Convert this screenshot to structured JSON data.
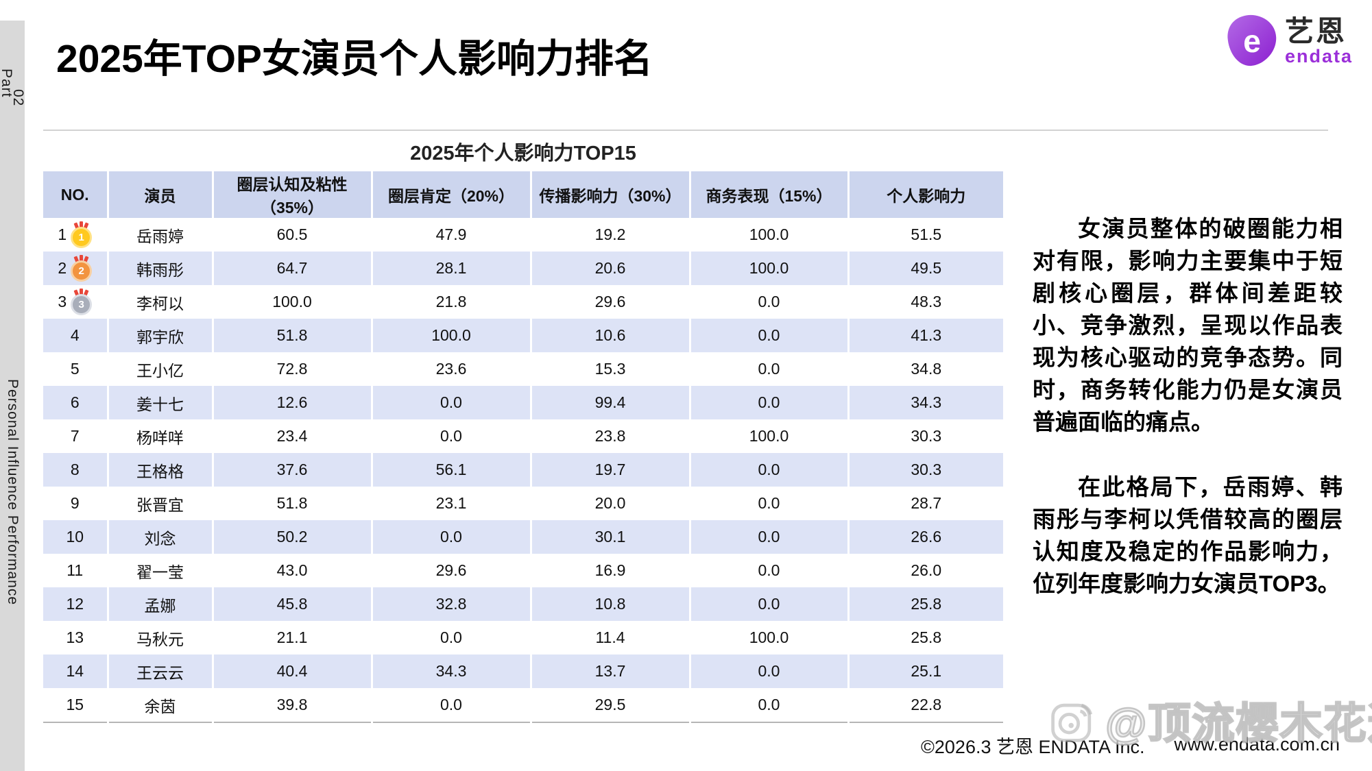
{
  "sidebar": {
    "part_line1": "Part",
    "part_line2": "02",
    "bottom_label": "Personal Influence Performance"
  },
  "header": {
    "title": "2025年TOP女演员个人影响力排名"
  },
  "logo": {
    "icon_letter": "e",
    "name_cn": "艺恩",
    "name_en": "endata"
  },
  "table": {
    "title": "2025年个人影响力TOP15",
    "columns": [
      "NO.",
      "演员",
      "圈层认知及粘性（35%）",
      "圈层肯定（20%）",
      "传播影响力（30%）",
      "商务表现（15%）",
      "个人影响力"
    ],
    "rows": [
      {
        "no": "1",
        "medal": "gold",
        "name": "岳雨婷",
        "values": [
          "60.5",
          "47.9",
          "19.2",
          "100.0",
          "51.5"
        ]
      },
      {
        "no": "2",
        "medal": "orange",
        "name": "韩雨彤",
        "values": [
          "64.7",
          "28.1",
          "20.6",
          "100.0",
          "49.5"
        ]
      },
      {
        "no": "3",
        "medal": "gray",
        "name": "李柯以",
        "values": [
          "100.0",
          "21.8",
          "29.6",
          "0.0",
          "48.3"
        ]
      },
      {
        "no": "4",
        "medal": "",
        "name": "郭宇欣",
        "values": [
          "51.8",
          "100.0",
          "10.6",
          "0.0",
          "41.3"
        ]
      },
      {
        "no": "5",
        "medal": "",
        "name": "王小亿",
        "values": [
          "72.8",
          "23.6",
          "15.3",
          "0.0",
          "34.8"
        ]
      },
      {
        "no": "6",
        "medal": "",
        "name": "姜十七",
        "values": [
          "12.6",
          "0.0",
          "99.4",
          "0.0",
          "34.3"
        ]
      },
      {
        "no": "7",
        "medal": "",
        "name": "杨咩咩",
        "values": [
          "23.4",
          "0.0",
          "23.8",
          "100.0",
          "30.3"
        ]
      },
      {
        "no": "8",
        "medal": "",
        "name": "王格格",
        "values": [
          "37.6",
          "56.1",
          "19.7",
          "0.0",
          "30.3"
        ]
      },
      {
        "no": "9",
        "medal": "",
        "name": "张晋宜",
        "values": [
          "51.8",
          "23.1",
          "20.0",
          "0.0",
          "28.7"
        ]
      },
      {
        "no": "10",
        "medal": "",
        "name": "刘念",
        "values": [
          "50.2",
          "0.0",
          "30.1",
          "0.0",
          "26.6"
        ]
      },
      {
        "no": "11",
        "medal": "",
        "name": "翟一莹",
        "values": [
          "43.0",
          "29.6",
          "16.9",
          "0.0",
          "26.0"
        ]
      },
      {
        "no": "12",
        "medal": "",
        "name": "孟娜",
        "values": [
          "45.8",
          "32.8",
          "10.8",
          "0.0",
          "25.8"
        ]
      },
      {
        "no": "13",
        "medal": "",
        "name": "马秋元",
        "values": [
          "21.1",
          "0.0",
          "11.4",
          "100.0",
          "25.8"
        ]
      },
      {
        "no": "14",
        "medal": "",
        "name": "王云云",
        "values": [
          "40.4",
          "34.3",
          "13.7",
          "0.0",
          "25.1"
        ]
      },
      {
        "no": "15",
        "medal": "",
        "name": "余茵",
        "values": [
          "39.8",
          "0.0",
          "29.5",
          "0.0",
          "22.8"
        ]
      }
    ]
  },
  "right_panel": {
    "paragraph1": "女演员整体的破圈能力相对有限，影响力主要集中于短剧核心圈层，群体间差距较小、竞争激烈，呈现以作品表现为核心驱动的竞争态势。同时，商务转化能力仍是女演员普遍面临的痛点。",
    "paragraph2": "在此格局下，岳雨婷、韩雨彤与李柯以凭借较高的圈层认知度及稳定的作品影响力，位列年度影响力女演员TOP3。"
  },
  "footer": {
    "copyright": "©2026.3  艺恩 ENDATA Inc.",
    "website": "www.endata.com.cn",
    "watermark": "@顶流樱木花道"
  },
  "colors": {
    "accent_purple": "#9b2fd9",
    "table_header_bg": "#ccd5ee",
    "table_stripe_bg": "#dde3f6",
    "sidebar_bg": "#d9d9d9",
    "medal_gold": "#ffc91f",
    "medal_orange": "#f29440",
    "medal_gray": "#a9aeba",
    "ribbon_red": "#e8473a"
  }
}
